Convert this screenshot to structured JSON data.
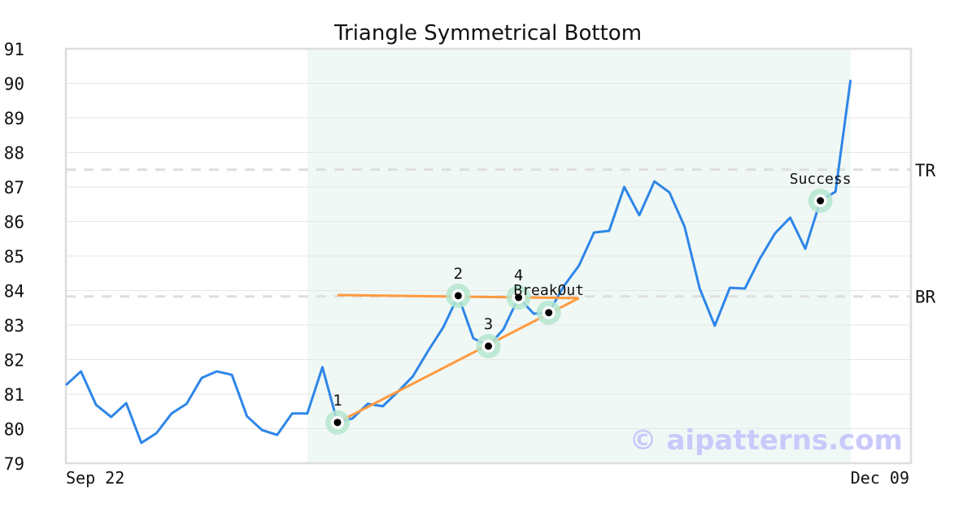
{
  "chart_data": {
    "type": "line",
    "title": "Triangle Symmetrical Bottom",
    "xlabel": "",
    "ylabel": "",
    "ylim": [
      79,
      91
    ],
    "xlim": [
      0,
      56
    ],
    "yticks": [
      "79",
      "80",
      "81",
      "82",
      "83",
      "84",
      "85",
      "86",
      "87",
      "88",
      "89",
      "90",
      "91"
    ],
    "xtick_labels": [
      {
        "index": 0,
        "label": "Sep 22"
      },
      {
        "index": 56,
        "label": "Dec 09"
      }
    ],
    "grid": true,
    "series": [
      {
        "name": "price",
        "color": "#2e86e8",
        "values": [
          81.26,
          81.66,
          80.69,
          80.34,
          80.74,
          79.59,
          79.87,
          80.44,
          80.72,
          81.47,
          81.66,
          81.56,
          80.36,
          79.96,
          79.82,
          80.44,
          80.44,
          81.78,
          80.18,
          80.3,
          80.72,
          80.65,
          81.07,
          81.52,
          82.25,
          82.93,
          83.85,
          82.62,
          82.39,
          82.88,
          83.8,
          83.33,
          83.36,
          84.13,
          84.72,
          85.68,
          85.73,
          87.0,
          86.18,
          87.16,
          86.84,
          85.85,
          84.06,
          82.98,
          84.08,
          84.06,
          84.93,
          85.66,
          86.11,
          85.21,
          86.6,
          86.86,
          90.1
        ]
      }
    ],
    "shaded_range": {
      "from": 16,
      "to": 52,
      "color": "#f0f8f5"
    },
    "hlines": [
      {
        "label": "TR",
        "value": 87.5
      },
      {
        "label": "BR",
        "value": 83.83
      }
    ],
    "trendlines": [
      {
        "from": [
          18,
          83.87
        ],
        "to": [
          34,
          83.78
        ],
        "color": "#ff9a40"
      },
      {
        "from": [
          18,
          80.18
        ],
        "to": [
          34,
          83.78
        ],
        "color": "#ff9a40"
      }
    ],
    "markers": [
      {
        "index": 18,
        "label": "1"
      },
      {
        "index": 26,
        "label": "2"
      },
      {
        "index": 28,
        "label": "3"
      },
      {
        "index": 30,
        "label": "4"
      },
      {
        "index": 32,
        "label": "BreakOut"
      },
      {
        "index": 50,
        "label": "Success"
      }
    ]
  },
  "watermark": "© aipatterns.com"
}
